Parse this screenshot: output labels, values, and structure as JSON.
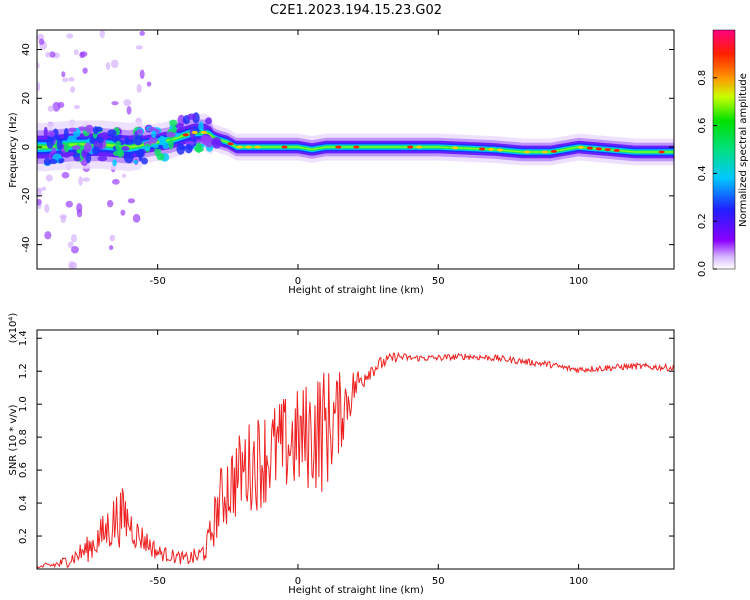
{
  "title": "C2E1.2023.194.15.23.G02",
  "chart_data": [
    {
      "type": "heatmap",
      "title": "C2E1.2023.194.15.23.G02",
      "xlabel": "Height of straight line (km)",
      "ylabel": "Frequency (Hz)",
      "xlim": [
        -93,
        134
      ],
      "ylim": [
        -50,
        48
      ],
      "xticks": [
        -50,
        0,
        50,
        100
      ],
      "yticks": [
        -40,
        -20,
        0,
        20,
        40
      ],
      "colorbar": {
        "label": "Normalized spectral amplitude",
        "range": [
          0,
          1
        ],
        "ticks": [
          "0.0",
          "0.2",
          "0.4",
          "0.6",
          "0.8"
        ]
      },
      "center_frequency_track": {
        "x": [
          -90,
          -80,
          -70,
          -60,
          -55,
          -50,
          -45,
          -40,
          -37,
          -33,
          -30,
          -28,
          -25,
          -22,
          -20,
          -10,
          0,
          5,
          10,
          20,
          30,
          50,
          70,
          80,
          90,
          95,
          100,
          110,
          120,
          134
        ],
        "y": [
          0,
          1,
          1,
          0,
          1,
          2,
          3,
          5,
          6,
          6,
          4,
          3,
          2,
          0,
          0,
          0,
          0,
          -1,
          0,
          0,
          0,
          0,
          -1,
          -2,
          -2,
          -1,
          0,
          -1,
          -2,
          -2
        ]
      }
    },
    {
      "type": "line",
      "xlabel": "Height of straight line (km)",
      "ylabel": "SNR (10 * v/v)",
      "y_multiplier_label": "(x10⁴)",
      "xlim": [
        -93,
        134
      ],
      "ylim": [
        0,
        1.45
      ],
      "xticks": [
        -50,
        0,
        50,
        100
      ],
      "yticks": [
        0.2,
        0.4,
        0.6,
        0.8,
        1.0,
        1.2,
        1.4
      ],
      "color": "#ee2222",
      "series": [
        {
          "x": [
            -93,
            -85,
            -80,
            -75,
            -70,
            -65,
            -62,
            -60,
            -58,
            -55,
            -50,
            -45,
            -40,
            -35,
            -32,
            -30,
            -28,
            -25,
            -22,
            -20,
            -15,
            -10,
            -5,
            0,
            5,
            8,
            10,
            15,
            20,
            25,
            30,
            35,
            40,
            50,
            60,
            70,
            80,
            90,
            95,
            100,
            110,
            120,
            134
          ],
          "y": [
            0.01,
            0.03,
            0.07,
            0.12,
            0.2,
            0.3,
            0.32,
            0.28,
            0.22,
            0.18,
            0.1,
            0.08,
            0.06,
            0.08,
            0.15,
            0.28,
            0.4,
            0.5,
            0.55,
            0.6,
            0.65,
            0.7,
            0.75,
            0.78,
            0.82,
            0.85,
            0.85,
            0.95,
            1.1,
            1.2,
            1.25,
            1.29,
            1.28,
            1.28,
            1.29,
            1.28,
            1.26,
            1.24,
            1.22,
            1.21,
            1.22,
            1.23,
            1.22
          ],
          "noise_amplitude": [
            0.01,
            0.03,
            0.05,
            0.08,
            0.12,
            0.18,
            0.18,
            0.12,
            0.1,
            0.08,
            0.05,
            0.04,
            0.04,
            0.06,
            0.1,
            0.15,
            0.2,
            0.25,
            0.25,
            0.25,
            0.3,
            0.3,
            0.3,
            0.32,
            0.35,
            0.4,
            0.38,
            0.25,
            0.12,
            0.06,
            0.04,
            0.03,
            0.02,
            0.02,
            0.02,
            0.02,
            0.02,
            0.02,
            0.02,
            0.02,
            0.02,
            0.02,
            0.02
          ]
        }
      ]
    }
  ]
}
